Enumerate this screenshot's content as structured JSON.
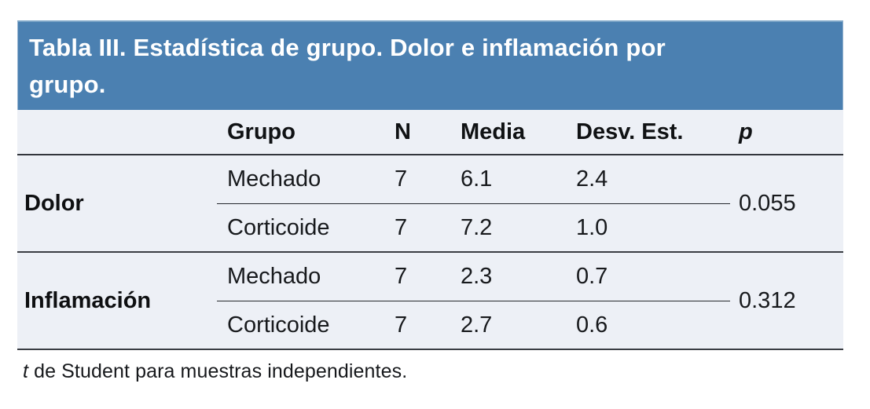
{
  "title": {
    "line1": "Tabla III. Estadística de grupo. Dolor e inflamación por",
    "line2": "grupo."
  },
  "columns": {
    "label": "",
    "grupo": "Grupo",
    "n": "N",
    "media": "Media",
    "desv": "Desv. Est.",
    "p": "p"
  },
  "groups": [
    {
      "label": "Dolor",
      "p": "0.055",
      "rows": [
        {
          "grupo": "Mechado",
          "n": "7",
          "media": "6.1",
          "desv": "2.4"
        },
        {
          "grupo": "Corticoide",
          "n": "7",
          "media": "7.2",
          "desv": "1.0"
        }
      ]
    },
    {
      "label": "Inflamación",
      "p": "0.312",
      "rows": [
        {
          "grupo": "Mechado",
          "n": "7",
          "media": "2.3",
          "desv": "0.7"
        },
        {
          "grupo": "Corticoide",
          "n": "7",
          "media": "2.7",
          "desv": "0.6"
        }
      ]
    }
  ],
  "footnote": {
    "italic": "t",
    "text": " de Student para muestras independientes."
  },
  "colors": {
    "band_blue": "#4b80b1",
    "body_bg": "#edf0f6",
    "rule_dark": "#33363c"
  }
}
